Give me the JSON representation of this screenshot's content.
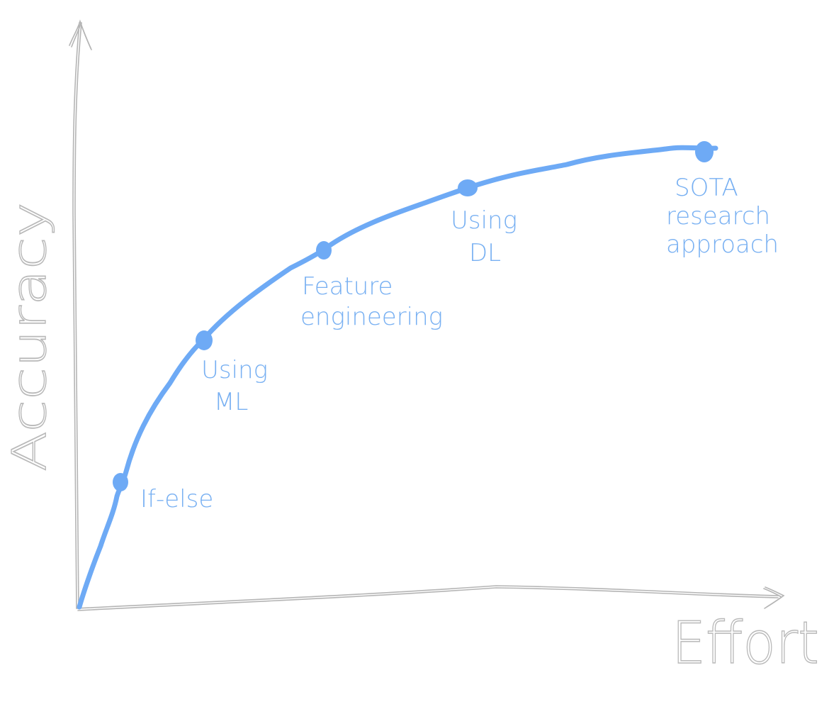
{
  "diagram": {
    "x_axis_label": "Effort",
    "y_axis_label": "Accuracy",
    "accent_color": "#6eaaf5",
    "axis_color": "#b5b5b5",
    "milestones": [
      {
        "name": "If-else",
        "label_lines": [
          "If-else"
        ]
      },
      {
        "name": "Using ML",
        "label_lines": [
          "Using",
          "ML"
        ]
      },
      {
        "name": "Feature engineering",
        "label_lines": [
          "Feature",
          "engineering"
        ]
      },
      {
        "name": "Using DL",
        "label_lines": [
          "Using",
          "DL"
        ]
      },
      {
        "name": "SOTA research approach",
        "label_lines": [
          "SOTA",
          "research",
          "approach"
        ]
      }
    ]
  }
}
